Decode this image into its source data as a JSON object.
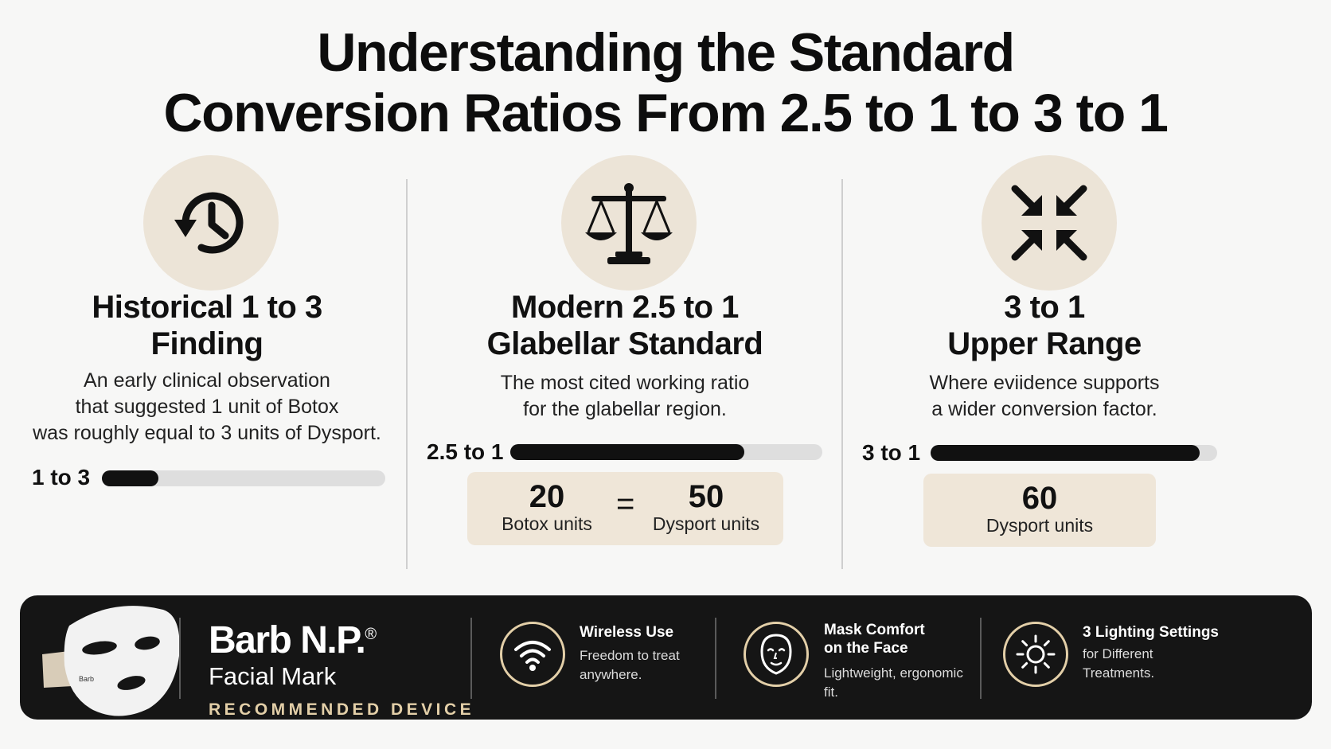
{
  "title": {
    "line1": "Understanding the Standard",
    "line2": "Conversion Ratios From 2.5 to 1 to 3 to 1"
  },
  "columns": [
    {
      "icon": "history-clock-icon",
      "title_line1": "Historical 1 to 3",
      "title_line2": "Finding",
      "desc_line1": "An early clinical observation",
      "desc_line2": "that suggested 1 unit of Botox",
      "desc_line3": "was roughly equal to 3 units of Dysport.",
      "bar_label": "1 to 3",
      "bar_fill_fraction": 0.2
    },
    {
      "icon": "balance-scale-icon",
      "title_line1": "Modern 2.5 to 1",
      "title_line2": "Glabellar Standard",
      "desc_line1": "The most cited working ratio",
      "desc_line2": "for the glabellar region.",
      "bar_label": "2.5 to 1",
      "bar_fill_fraction": 0.75,
      "units_left_value": "20",
      "units_left_label": "Botox units",
      "equals": "=",
      "units_right_value": "50",
      "units_right_label": "Dysport units"
    },
    {
      "icon": "compress-arrows-icon",
      "title_line1": "3 to 1",
      "title_line2": "Upper Range",
      "desc_line1": "Where eviidence supports",
      "desc_line2": "a wider conversion factor.",
      "bar_label": "3 to 1",
      "bar_fill_fraction": 0.94,
      "units_value": "60",
      "units_label": "Dysport units"
    }
  ],
  "footer": {
    "device_mask_label": "Barb",
    "brand_name": "Barb N.P.",
    "brand_mark": "®",
    "brand_sub": "Facial Mark",
    "brand_tag": "RECOMMENDED DEVICE",
    "features": [
      {
        "icon": "wifi-icon",
        "title_line1": "Wireless Use",
        "title_line2": "",
        "desc_line1": "Freedom to treat",
        "desc_line2": "anywhere."
      },
      {
        "icon": "face-icon",
        "title_line1": "Mask Comfort",
        "title_line2": "on the Face",
        "desc_line1": "Lightweight, ergonomic",
        "desc_line2": "fit."
      },
      {
        "icon": "sun-icon",
        "title_line1": "3 Lighting Settings",
        "title_line2": "",
        "desc_line1": "for Different",
        "desc_line2": "Treatments."
      }
    ]
  },
  "colors": {
    "background": "#f7f7f6",
    "icon_circle": "#ece4d7",
    "unit_box": "#efe6d8",
    "bar_fill": "#111111",
    "bar_track": "#dedede",
    "footer_bg": "#151515",
    "footer_accent": "#e3cfa8"
  }
}
